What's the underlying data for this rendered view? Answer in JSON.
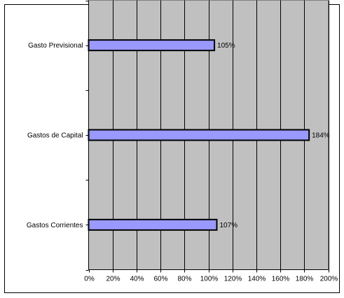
{
  "chart_data": {
    "type": "bar",
    "orientation": "horizontal",
    "categories": [
      "Gastos Corrientes",
      "Gastos de Capital",
      "Gasto Previsional"
    ],
    "values": [
      107,
      184,
      105
    ],
    "data_labels": [
      "107%",
      "184%",
      "105%"
    ],
    "x_ticks": [
      "0%",
      "20%",
      "40%",
      "60%",
      "80%",
      "100%",
      "120%",
      "140%",
      "160%",
      "180%",
      "200%"
    ],
    "xlim": [
      0,
      200
    ],
    "title": "",
    "xlabel": "",
    "ylabel": "",
    "grid": true,
    "legend": "none",
    "colors": {
      "bar_fill": "#9999ff",
      "bar_stroke": "#000000",
      "plot_background": "#c0c0c0",
      "gridline": "#000000"
    }
  }
}
